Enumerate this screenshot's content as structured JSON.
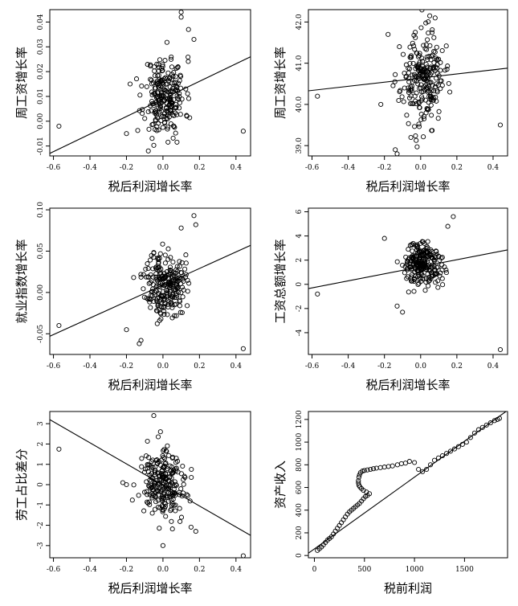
{
  "chart_data": [
    {
      "type": "scatter",
      "xlabel": "税后利润增长率",
      "ylabel": "周工资增长率",
      "xlim": [
        -0.62,
        0.48
      ],
      "ylim": [
        -0.014,
        0.045
      ],
      "xticks": [
        -0.6,
        -0.4,
        -0.2,
        0.0,
        0.2,
        0.4
      ],
      "xtick_labels": [
        "-0.6",
        "-0.4",
        "-0.2",
        "0.0",
        "0.2",
        "0.4"
      ],
      "yticks": [
        -0.01,
        0.0,
        0.01,
        0.02,
        0.03,
        0.04
      ],
      "ytick_labels": [
        "-0.01",
        "0.00",
        "0.01",
        "0.02",
        "0.03",
        "0.04"
      ],
      "cloud": {
        "n": 240,
        "cx": 0.01,
        "sx": 0.055,
        "cy": 0.01,
        "sy": 0.008,
        "seed": 11
      },
      "outliers": [
        [
          -0.57,
          -0.002
        ],
        [
          0.44,
          -0.004
        ],
        [
          -0.08,
          -0.012
        ],
        [
          0.1,
          0.044
        ],
        [
          0.1,
          0.042
        ],
        [
          0.17,
          0.033
        ],
        [
          0.14,
          0.037
        ],
        [
          -0.2,
          -0.005
        ],
        [
          -0.18,
          0.015
        ]
      ],
      "fit": [
        [
          -0.62,
          -0.013
        ],
        [
          0.48,
          0.026
        ]
      ],
      "grid": false
    },
    {
      "type": "scatter",
      "xlabel": "税后利润增长率",
      "ylabel": "周工资增长率",
      "xlim": [
        -0.62,
        0.48
      ],
      "ylim": [
        38.75,
        42.3
      ],
      "xticks": [
        -0.6,
        -0.4,
        -0.2,
        0.0,
        0.2,
        0.4
      ],
      "xtick_labels": [
        "-0.6",
        "-0.4",
        "-0.2",
        "0.0",
        "0.2",
        "0.4"
      ],
      "yticks": [
        39.0,
        40.0,
        41.0,
        42.0
      ],
      "ytick_labels": [
        "39.0",
        "40.0",
        "41.0",
        "42.0"
      ],
      "cloud": {
        "n": 240,
        "cx": 0.01,
        "sx": 0.06,
        "cy": 40.6,
        "sy": 0.55,
        "seed": 23
      },
      "outliers": [
        [
          -0.57,
          40.2
        ],
        [
          0.44,
          39.5
        ],
        [
          -0.13,
          38.8
        ],
        [
          -0.14,
          38.9
        ],
        [
          -0.22,
          40.0
        ],
        [
          -0.18,
          41.7
        ],
        [
          0.08,
          42.1
        ],
        [
          0.05,
          42.15
        ]
      ],
      "fit": [
        [
          -0.62,
          40.33
        ],
        [
          0.48,
          40.88
        ]
      ],
      "grid": false
    },
    {
      "type": "scatter",
      "xlabel": "税后利润增长率",
      "ylabel": "就业指数增长率",
      "xlim": [
        -0.62,
        0.48
      ],
      "ylim": [
        -0.075,
        0.102
      ],
      "xticks": [
        -0.6,
        -0.4,
        -0.2,
        0.0,
        0.2,
        0.4
      ],
      "xtick_labels": [
        "-0.6",
        "-0.4",
        "-0.2",
        "0.0",
        "0.2",
        "0.4"
      ],
      "yticks": [
        -0.05,
        0.0,
        0.05,
        0.1
      ],
      "ytick_labels": [
        "-0.05",
        "0.00",
        "0.05",
        "0.10"
      ],
      "cloud": {
        "n": 240,
        "cx": 0.01,
        "sx": 0.055,
        "cy": 0.01,
        "sy": 0.02,
        "seed": 37
      },
      "outliers": [
        [
          -0.57,
          -0.04
        ],
        [
          0.44,
          -0.068
        ],
        [
          0.17,
          0.093
        ],
        [
          0.18,
          0.082
        ],
        [
          -0.13,
          -0.062
        ],
        [
          -0.12,
          -0.058
        ],
        [
          -0.2,
          -0.045
        ],
        [
          0.1,
          0.078
        ]
      ],
      "fit": [
        [
          -0.62,
          -0.053
        ],
        [
          0.48,
          0.057
        ]
      ],
      "grid": false
    },
    {
      "type": "scatter",
      "xlabel": "税后利润增长率",
      "ylabel": "工资总额增长率",
      "xlim": [
        -0.62,
        0.48
      ],
      "ylim": [
        -5.8,
        6.3
      ],
      "xticks": [
        -0.6,
        -0.4,
        -0.2,
        0.0,
        0.2,
        0.4
      ],
      "xtick_labels": [
        "-0.6",
        "-0.4",
        "-0.2",
        "0.0",
        "0.2",
        "0.4"
      ],
      "yticks": [
        -4,
        -2,
        0,
        2,
        4,
        6
      ],
      "ytick_labels": [
        "-4",
        "-2",
        "0",
        "2",
        "4",
        "6"
      ],
      "cloud": {
        "n": 240,
        "cx": 0.01,
        "sx": 0.055,
        "cy": 1.6,
        "sy": 0.9,
        "seed": 51
      },
      "outliers": [
        [
          -0.57,
          -0.8
        ],
        [
          0.44,
          -5.4
        ],
        [
          0.18,
          5.6
        ],
        [
          -0.2,
          3.8
        ],
        [
          -0.1,
          -2.3
        ],
        [
          -0.13,
          -1.8
        ],
        [
          0.15,
          4.8
        ]
      ],
      "fit": [
        [
          -0.62,
          -0.35
        ],
        [
          0.48,
          2.85
        ]
      ],
      "grid": false
    },
    {
      "type": "scatter",
      "xlabel": "税后利润增长率",
      "ylabel": "劳工占比差分",
      "xlim": [
        -0.62,
        0.48
      ],
      "ylim": [
        -3.6,
        3.6
      ],
      "xticks": [
        -0.6,
        -0.4,
        -0.2,
        0.0,
        0.2,
        0.4
      ],
      "xtick_labels": [
        "-0.6",
        "-0.4",
        "-0.2",
        "0.0",
        "0.2",
        "0.4"
      ],
      "yticks": [
        -3,
        -2,
        -1,
        0,
        1,
        2,
        3
      ],
      "ytick_labels": [
        "-3",
        "-2",
        "-1",
        "0",
        "1",
        "2",
        "3"
      ],
      "cloud": {
        "n": 240,
        "cx": 0.01,
        "sx": 0.06,
        "cy": 0.0,
        "sy": 0.85,
        "seed": 73
      },
      "outliers": [
        [
          -0.57,
          1.75
        ],
        [
          0.44,
          -3.5
        ],
        [
          -0.05,
          3.4
        ],
        [
          0.0,
          -3.0
        ],
        [
          -0.22,
          0.1
        ],
        [
          -0.2,
          0.0
        ],
        [
          0.18,
          -2.3
        ]
      ],
      "fit": [
        [
          -0.62,
          3.2
        ],
        [
          0.48,
          -2.5
        ]
      ],
      "grid": false
    },
    {
      "type": "scatter",
      "xlabel": "税前利润",
      "ylabel": "资产收入",
      "xlim": [
        -60,
        1930
      ],
      "ylim": [
        -20,
        1270
      ],
      "xticks": [
        0,
        500,
        1000,
        1500
      ],
      "xtick_labels": [
        "0",
        "500",
        "1000",
        "1500"
      ],
      "yticks": [
        0,
        200,
        400,
        600,
        800,
        1000,
        1200
      ],
      "ytick_labels": [
        "0",
        "200",
        "400",
        "600",
        "800",
        "1000",
        "1200"
      ],
      "path": [
        [
          30,
          45
        ],
        [
          50,
          60
        ],
        [
          70,
          75
        ],
        [
          90,
          95
        ],
        [
          110,
          115
        ],
        [
          130,
          135
        ],
        [
          150,
          150
        ],
        [
          170,
          165
        ],
        [
          190,
          190
        ],
        [
          210,
          215
        ],
        [
          230,
          240
        ],
        [
          250,
          265
        ],
        [
          270,
          290
        ],
        [
          290,
          315
        ],
        [
          310,
          340
        ],
        [
          330,
          365
        ],
        [
          350,
          385
        ],
        [
          370,
          400
        ],
        [
          390,
          415
        ],
        [
          410,
          430
        ],
        [
          430,
          445
        ],
        [
          450,
          460
        ],
        [
          470,
          480
        ],
        [
          490,
          500
        ],
        [
          510,
          520
        ],
        [
          530,
          530
        ],
        [
          550,
          545
        ],
        [
          520,
          560
        ],
        [
          490,
          575
        ],
        [
          470,
          590
        ],
        [
          455,
          605
        ],
        [
          445,
          620
        ],
        [
          440,
          640
        ],
        [
          440,
          660
        ],
        [
          445,
          690
        ],
        [
          450,
          710
        ],
        [
          460,
          730
        ],
        [
          480,
          745
        ],
        [
          500,
          750
        ],
        [
          530,
          755
        ],
        [
          560,
          760
        ],
        [
          590,
          765
        ],
        [
          620,
          770
        ],
        [
          660,
          775
        ],
        [
          700,
          780
        ],
        [
          740,
          785
        ],
        [
          780,
          790
        ],
        [
          830,
          800
        ],
        [
          870,
          810
        ],
        [
          910,
          815
        ],
        [
          950,
          830
        ],
        [
          1000,
          820
        ],
        [
          1040,
          760
        ],
        [
          1080,
          740
        ],
        [
          1120,
          760
        ],
        [
          1160,
          800
        ],
        [
          1200,
          840
        ],
        [
          1240,
          860
        ],
        [
          1280,
          880
        ],
        [
          1320,
          900
        ],
        [
          1360,
          920
        ],
        [
          1400,
          940
        ],
        [
          1440,
          960
        ],
        [
          1480,
          980
        ],
        [
          1520,
          1000
        ],
        [
          1560,
          1040
        ],
        [
          1600,
          1080
        ],
        [
          1640,
          1110
        ],
        [
          1680,
          1130
        ],
        [
          1720,
          1150
        ],
        [
          1760,
          1170
        ],
        [
          1800,
          1190
        ],
        [
          1830,
          1200
        ],
        [
          1850,
          1210
        ]
      ],
      "fit": [
        [
          -60,
          20
        ],
        [
          1930,
          1280
        ]
      ],
      "grid": false
    }
  ]
}
